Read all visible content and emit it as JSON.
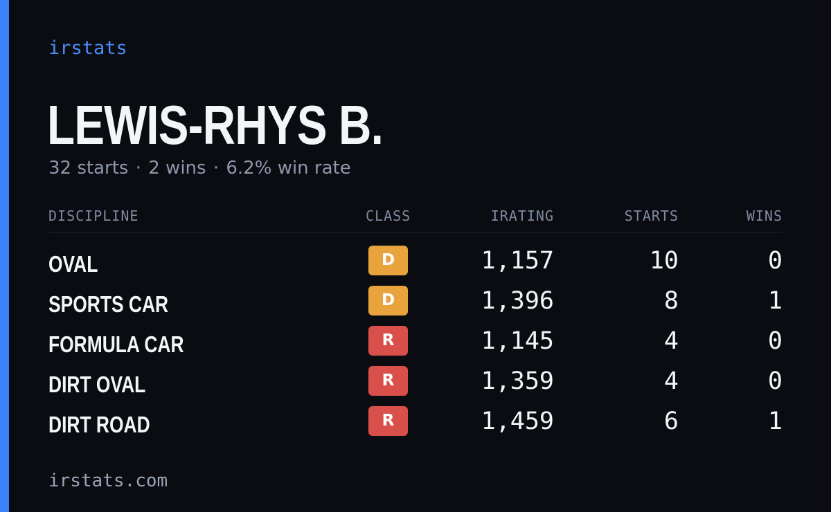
{
  "brand": "irstats",
  "driver": {
    "name": "LEWIS-RHYS B.",
    "starts_text": "32 starts",
    "wins_text": "2 wins",
    "win_rate_text": "6.2% win rate",
    "separator": "·"
  },
  "table": {
    "headers": {
      "discipline": "DISCIPLINE",
      "class": "CLASS",
      "irating": "IRATING",
      "starts": "STARTS",
      "wins": "WINS"
    },
    "rows": [
      {
        "discipline": "OVAL",
        "class": "D",
        "irating": "1,157",
        "starts": "10",
        "wins": "0"
      },
      {
        "discipline": "SPORTS CAR",
        "class": "D",
        "irating": "1,396",
        "starts": "8",
        "wins": "1"
      },
      {
        "discipline": "FORMULA CAR",
        "class": "R",
        "irating": "1,145",
        "starts": "4",
        "wins": "0"
      },
      {
        "discipline": "DIRT OVAL",
        "class": "R",
        "irating": "1,359",
        "starts": "4",
        "wins": "0"
      },
      {
        "discipline": "DIRT ROAD",
        "class": "R",
        "irating": "1,459",
        "starts": "6",
        "wins": "1"
      }
    ]
  },
  "class_colors": {
    "D": "#e8a33c",
    "R": "#d94f4a"
  },
  "accent_color": "#3b82f6",
  "footer": "irstats.com"
}
